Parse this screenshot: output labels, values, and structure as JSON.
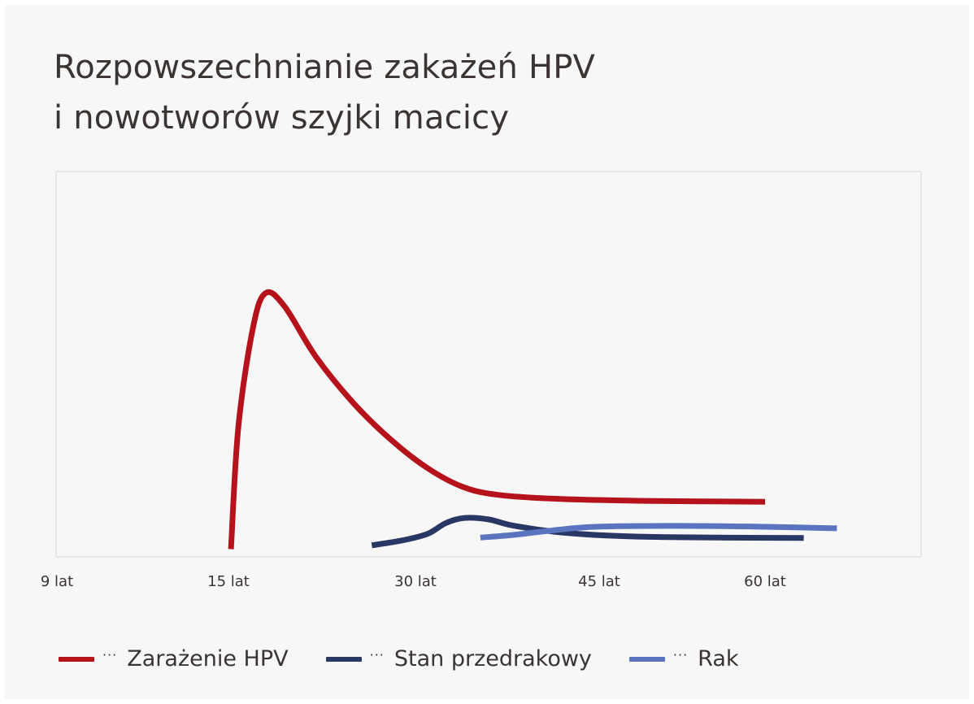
{
  "chart_data": {
    "type": "line",
    "title_lines": [
      "Rozpowszechnianie zakażeń HPV",
      "i nowotworów szyjki macicy"
    ],
    "xlabel": "",
    "ylabel": "",
    "x_ticks": [
      "9 lat",
      "15 lat",
      "30 lat",
      "45 lat",
      "60 lat"
    ],
    "ylim": [
      0,
      100
    ],
    "legend_position": "bottom",
    "series": [
      {
        "name": "Zarażenie HPV",
        "color": "#b5121b",
        "points": [
          [
            15.2,
            2
          ],
          [
            15.8,
            34
          ],
          [
            17,
            60
          ],
          [
            18,
            68.5
          ],
          [
            19.5,
            65
          ],
          [
            22,
            52
          ],
          [
            25,
            40
          ],
          [
            28,
            30.5
          ],
          [
            31,
            23
          ],
          [
            34,
            18
          ],
          [
            37,
            16
          ],
          [
            42,
            15
          ],
          [
            50,
            14.5
          ],
          [
            60,
            14.3
          ]
        ]
      },
      {
        "name": "Stan przedrakowy",
        "color": "#293764",
        "points": [
          [
            26.5,
            3
          ],
          [
            29,
            4.3
          ],
          [
            31,
            6
          ],
          [
            32.5,
            8.8
          ],
          [
            34,
            10.1
          ],
          [
            36,
            9.7
          ],
          [
            38,
            8.1
          ],
          [
            42,
            6.3
          ],
          [
            48,
            5.3
          ],
          [
            56,
            5
          ],
          [
            63.5,
            4.9
          ]
        ]
      },
      {
        "name": "Rak",
        "color": "#5b74bf",
        "points": [
          [
            35.3,
            5
          ],
          [
            38,
            5.7
          ],
          [
            41,
            6.8
          ],
          [
            44,
            7.7
          ],
          [
            48,
            8
          ],
          [
            55,
            8
          ],
          [
            60,
            7.8
          ],
          [
            66.5,
            7.4
          ]
        ]
      }
    ]
  }
}
